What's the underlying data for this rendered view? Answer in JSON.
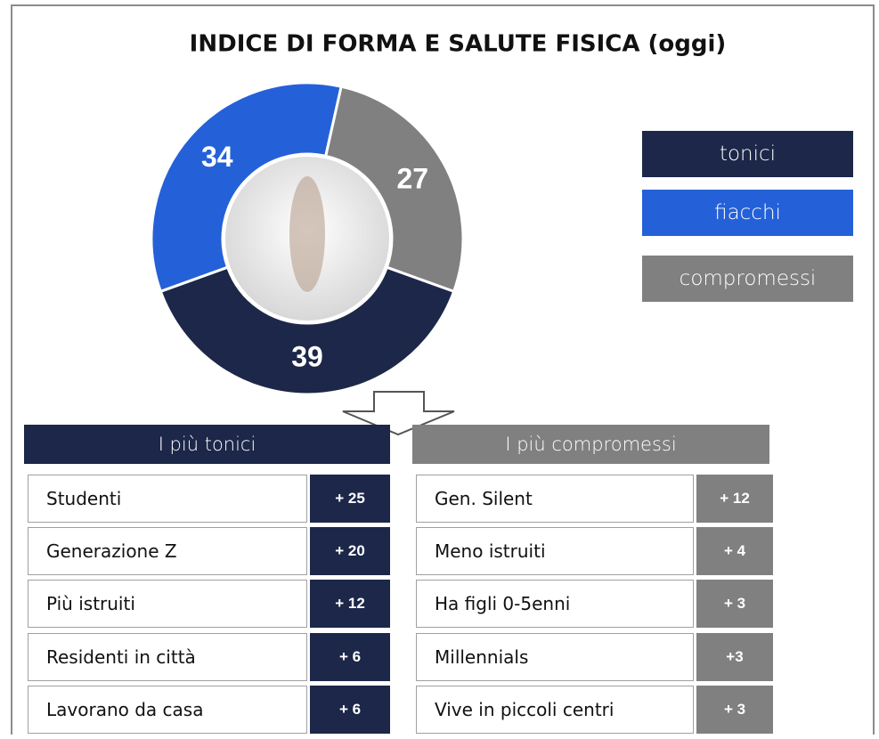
{
  "chart_data": {
    "type": "pie",
    "title": "INDICE DI FORMA E SALUTE FISICA (oggi)",
    "categories": [
      "tonici",
      "fiacchi",
      "compromessi"
    ],
    "values": [
      39,
      34,
      27
    ],
    "colors": [
      "#1c2749",
      "#2461d8",
      "#808080"
    ]
  },
  "tables": [
    {
      "title": "I più tonici",
      "color": "#1c2749",
      "rows": [
        [
          "Studenti",
          "+ 25"
        ],
        [
          "Generazione Z",
          "+ 20"
        ],
        [
          "Più istruiti",
          "+ 12"
        ],
        [
          "Residenti in città",
          "+ 6"
        ],
        [
          "Lavorano da casa",
          "+ 6"
        ]
      ]
    },
    {
      "title": "I più compromessi",
      "color": "#808080",
      "rows": [
        [
          "Gen. Silent",
          "+ 12"
        ],
        [
          "Meno istruiti",
          "+ 4"
        ],
        [
          "Ha figli  0-5enni",
          "+ 3"
        ],
        [
          "Millennials",
          "+3"
        ],
        [
          "Vive in piccoli centri",
          "+ 3"
        ]
      ]
    }
  ]
}
